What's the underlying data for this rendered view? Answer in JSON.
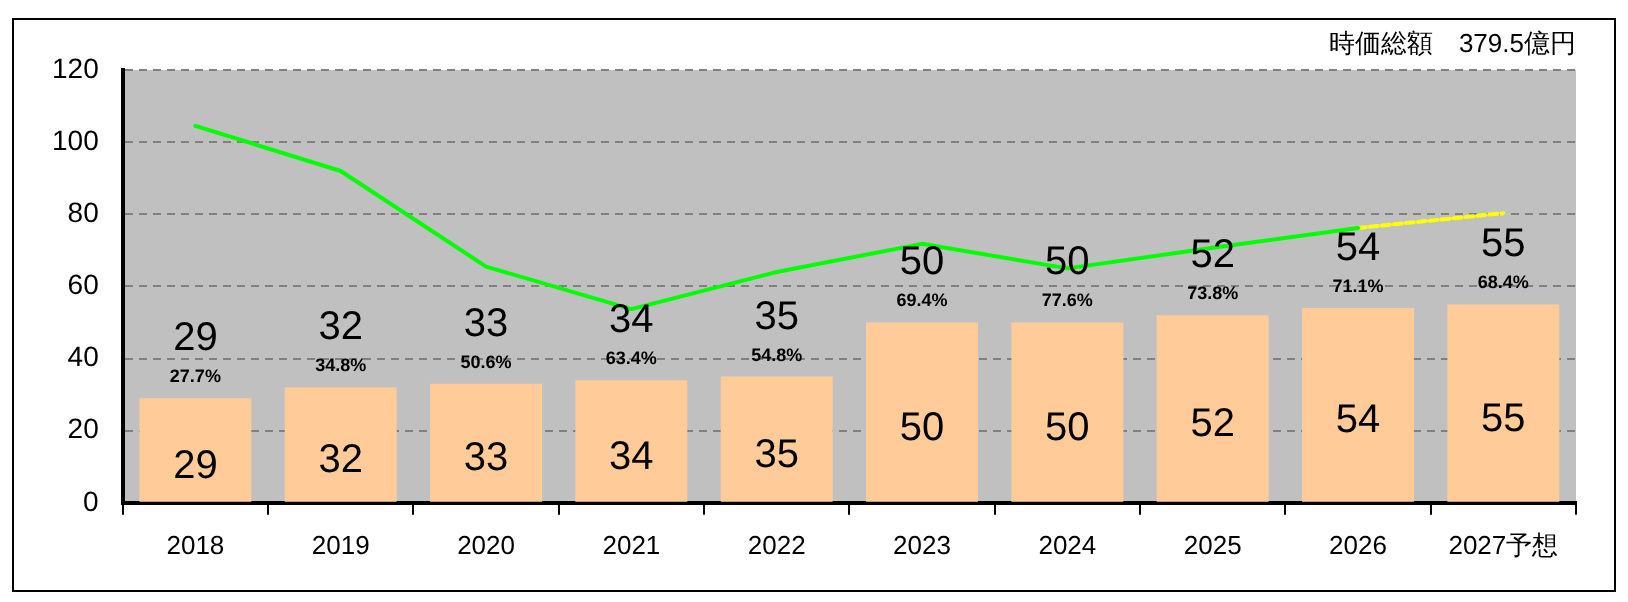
{
  "chart_data": {
    "type": "bar",
    "title": "時価総額　379.5億円",
    "categories": [
      "2018",
      "2019",
      "2020",
      "2021",
      "2022",
      "2023",
      "2024",
      "2025",
      "2026",
      "2027予想"
    ],
    "series": [
      {
        "color": "#ffcc99",
        "values": [
          29,
          32,
          33,
          34,
          35,
          50,
          50,
          52,
          54,
          55
        ],
        "value_labels": [
          "29",
          "32",
          "33",
          "34",
          "35",
          "50",
          "50",
          "52",
          "54",
          "55"
        ]
      },
      {
        "type": "line",
        "color": "#00ff00",
        "line_style": "solid",
        "values": [
          104.5,
          92,
          65.5,
          53.7,
          64,
          71.8,
          65,
          70.7,
          76.2,
          null
        ]
      },
      {
        "type": "line",
        "color": "#ffff00",
        "line_style": "dashed",
        "values": [
          null,
          null,
          null,
          null,
          null,
          null,
          null,
          null,
          76.2,
          80.3
        ]
      }
    ],
    "annotations": [
      {
        "text": "29",
        "x": "2018",
        "y": 29
      },
      {
        "text": "27.7%",
        "x": "2018",
        "y": 29
      },
      {
        "text": "32",
        "x": "2019",
        "y": 32
      },
      {
        "text": "34.8%",
        "x": "2019",
        "y": 32
      },
      {
        "text": "33",
        "x": "2020",
        "y": 33
      },
      {
        "text": "50.6%",
        "x": "2020",
        "y": 33
      },
      {
        "text": "34",
        "x": "2021",
        "y": 34
      },
      {
        "text": "63.4%",
        "x": "2021",
        "y": 34
      },
      {
        "text": "35",
        "x": "2022",
        "y": 35
      },
      {
        "text": "54.8%",
        "x": "2022",
        "y": 35
      },
      {
        "text": "50",
        "x": "2023",
        "y": 50
      },
      {
        "text": "69.4%",
        "x": "2023",
        "y": 50
      },
      {
        "text": "50",
        "x": "2024",
        "y": 50
      },
      {
        "text": "77.6%",
        "x": "2024",
        "y": 50
      },
      {
        "text": "52",
        "x": "2025",
        "y": 52
      },
      {
        "text": "73.8%",
        "x": "2025",
        "y": 52
      },
      {
        "text": "54",
        "x": "2026",
        "y": 54
      },
      {
        "text": "71.1%",
        "x": "2026",
        "y": 54
      },
      {
        "text": "55",
        "x": "2027予想",
        "y": 55
      },
      {
        "text": "68.4%",
        "x": "2027予想",
        "y": 55
      }
    ],
    "grid": "y",
    "legend": false,
    "ylim": [
      0,
      120
    ],
    "yticks": [
      0,
      20,
      40,
      60,
      80,
      100,
      120
    ]
  }
}
